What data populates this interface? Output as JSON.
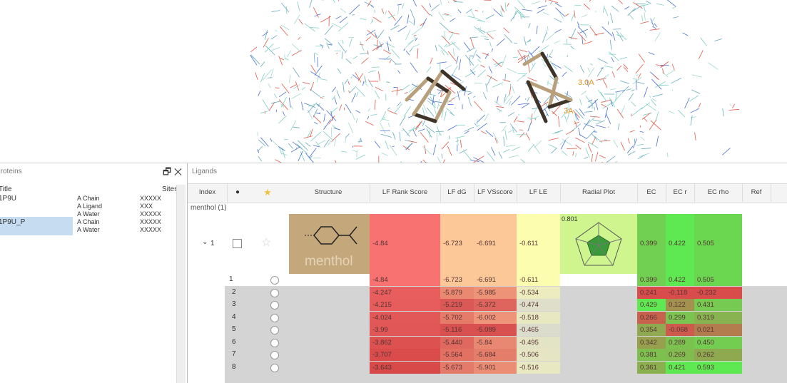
{
  "viewer": {
    "labels": [
      "3.0A",
      "3A"
    ]
  },
  "proteins": {
    "title": "Proteins",
    "columns": [
      "Title",
      "Sites"
    ],
    "items": [
      {
        "name": "1P9U",
        "chains": [
          "A Chain",
          "A Ligand",
          "A Water"
        ],
        "sites": [
          "XXXXX",
          "XXX",
          "XXXXX"
        ]
      },
      {
        "name": "1P9U_P",
        "chains": [
          "A Chain",
          "A Water"
        ],
        "sites": [
          "XXXXX",
          "XXXXX"
        ]
      }
    ]
  },
  "ligands": {
    "title": "Ligands",
    "columns": [
      "Index",
      "Structure",
      "LF Rank Score",
      "LF dG",
      "LF VSscore",
      "LF LE",
      "Radial Plot",
      "EC",
      "EC r",
      "EC rho",
      "Ref"
    ],
    "group": "menthol (1)",
    "parent": {
      "index": "1",
      "structure": "menthol",
      "radial": "0.801",
      "cells": [
        "-4.84",
        "-6.723",
        "-6.691",
        "-0.611",
        "0.399",
        "0.422",
        "0.505"
      ]
    },
    "rows": [
      {
        "index": "1",
        "cells": [
          "-4.84",
          "-6.723",
          "-6.691",
          "-0.611",
          "0.399",
          "0.422",
          "0.505"
        ]
      },
      {
        "index": "2",
        "cells": [
          "-4.247",
          "-5.879",
          "-5.985",
          "-0.534",
          "0.241",
          "-0.118",
          "-0.232"
        ]
      },
      {
        "index": "3",
        "cells": [
          "-4.215",
          "-5.219",
          "-5.372",
          "-0.474",
          "0.429",
          "0.122",
          "0.431"
        ]
      },
      {
        "index": "4",
        "cells": [
          "-4.024",
          "-5.702",
          "-6.002",
          "-0.518",
          "0.266",
          "0.299",
          "0.319"
        ]
      },
      {
        "index": "5",
        "cells": [
          "-3.99",
          "-5.116",
          "-5.089",
          "-0.465",
          "0.354",
          "-0.068",
          "0.021"
        ]
      },
      {
        "index": "6",
        "cells": [
          "-3.862",
          "-5.440",
          "-5.84",
          "-0.495",
          "0.342",
          "0.289",
          "0.450"
        ]
      },
      {
        "index": "7",
        "cells": [
          "-3.707",
          "-5.564",
          "-5.684",
          "-0.506",
          "0.381",
          "0.269",
          "0.262"
        ]
      },
      {
        "index": "8",
        "cells": [
          "-3.643",
          "-5.673",
          "-5.901",
          "-0.516",
          "0.361",
          "0.421",
          "0.593"
        ]
      }
    ]
  }
}
